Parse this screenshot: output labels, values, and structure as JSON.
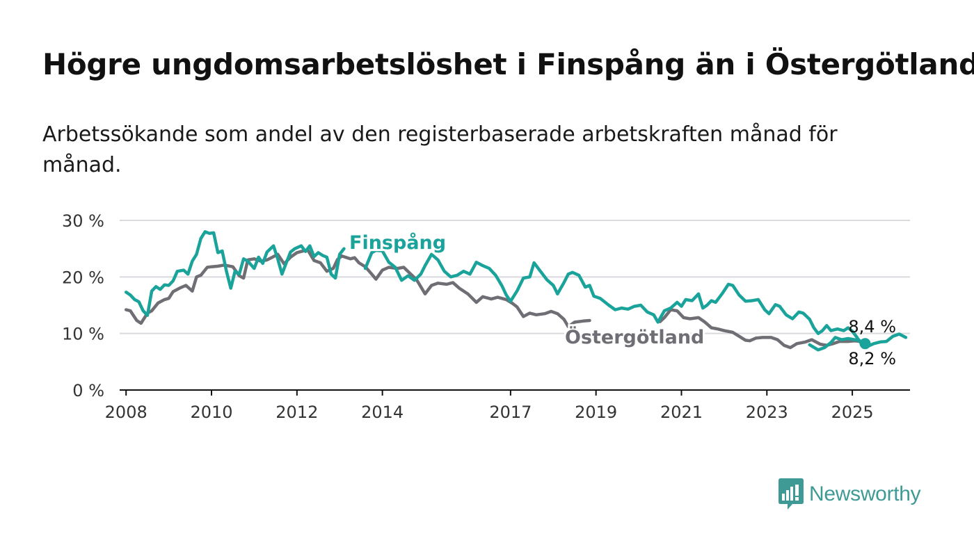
{
  "title": "Högre ungdomsarbetslöshet i Finspång än i Östergötland",
  "subtitle": "Arbetssökande som andel av den registerbaserade arbetskraften månad för månad.",
  "brand": {
    "name": "Newsworthy",
    "color": "#3f9a96"
  },
  "chart_data": {
    "type": "line",
    "grid": true,
    "ylim": [
      0,
      30
    ],
    "y_ticks": [
      0,
      10,
      20,
      30
    ],
    "y_tick_labels": [
      "0 %",
      "10 %",
      "20 %",
      "30 %"
    ],
    "x_range": [
      2007.85,
      2026.35
    ],
    "x_ticks": [
      2008,
      2010,
      2012,
      2014,
      2017,
      2019,
      2021,
      2023,
      2025
    ],
    "x_tick_labels": [
      "2008",
      "2010",
      "2012",
      "2014",
      "2017",
      "2019",
      "2021",
      "2023",
      "2025"
    ],
    "series": [
      {
        "name": "Östergötland",
        "color": "#6e6e74",
        "end_label": "8,4 %",
        "points": [
          [
            2008.0,
            14.2
          ],
          [
            2008.1,
            14.0
          ],
          [
            2008.25,
            12.3
          ],
          [
            2008.35,
            11.8
          ],
          [
            2008.5,
            13.6
          ],
          [
            2008.6,
            14.0
          ],
          [
            2008.75,
            15.4
          ],
          [
            2008.9,
            16.0
          ],
          [
            2009.0,
            16.2
          ],
          [
            2009.1,
            17.4
          ],
          [
            2009.25,
            18.0
          ],
          [
            2009.4,
            18.5
          ],
          [
            2009.55,
            17.5
          ],
          [
            2009.65,
            20.0
          ],
          [
            2009.75,
            20.3
          ],
          [
            2009.9,
            21.7
          ],
          [
            2010.0,
            21.8
          ],
          [
            2010.15,
            21.9
          ],
          [
            2010.3,
            22.1
          ],
          [
            2010.5,
            21.8
          ],
          [
            2010.65,
            20.2
          ],
          [
            2010.75,
            19.8
          ],
          [
            2010.85,
            23.0
          ],
          [
            2011.0,
            23.2
          ],
          [
            2011.15,
            22.8
          ],
          [
            2011.3,
            23.0
          ],
          [
            2011.4,
            23.4
          ],
          [
            2011.55,
            24.0
          ],
          [
            2011.7,
            22.3
          ],
          [
            2011.85,
            23.5
          ],
          [
            2012.0,
            24.3
          ],
          [
            2012.1,
            24.5
          ],
          [
            2012.25,
            24.8
          ],
          [
            2012.4,
            22.9
          ],
          [
            2012.55,
            22.5
          ],
          [
            2012.7,
            21.0
          ],
          [
            2012.85,
            21.5
          ],
          [
            2012.95,
            23.1
          ],
          [
            2013.05,
            23.7
          ],
          [
            2013.25,
            23.2
          ],
          [
            2013.35,
            23.4
          ],
          [
            2013.45,
            22.5
          ],
          [
            2013.6,
            21.8
          ],
          [
            2013.75,
            20.5
          ],
          [
            2013.85,
            19.6
          ],
          [
            2014.0,
            21.2
          ],
          [
            2014.15,
            21.7
          ],
          [
            2014.35,
            21.5
          ],
          [
            2014.5,
            21.7
          ],
          [
            2014.65,
            20.6
          ],
          [
            2014.8,
            19.5
          ],
          [
            2015.0,
            17.0
          ],
          [
            2015.15,
            18.5
          ],
          [
            2015.3,
            18.9
          ],
          [
            2015.5,
            18.7
          ],
          [
            2015.65,
            19.0
          ],
          [
            2015.8,
            18.0
          ],
          [
            2016.0,
            17.0
          ],
          [
            2016.2,
            15.5
          ],
          [
            2016.35,
            16.5
          ],
          [
            2016.55,
            16.1
          ],
          [
            2016.7,
            16.4
          ],
          [
            2016.9,
            16.0
          ],
          [
            2017.05,
            15.3
          ],
          [
            2017.15,
            14.7
          ],
          [
            2017.3,
            13.0
          ],
          [
            2017.45,
            13.6
          ],
          [
            2017.6,
            13.3
          ],
          [
            2017.8,
            13.5
          ],
          [
            2017.95,
            13.9
          ],
          [
            2018.1,
            13.5
          ],
          [
            2018.25,
            12.5
          ],
          [
            2018.35,
            11.2
          ],
          [
            2018.5,
            12.0
          ],
          [
            2018.7,
            12.2
          ],
          [
            2018.85,
            12.3
          ]
        ],
        "points_right": [
          [
            2020.5,
            12.1
          ],
          [
            2020.6,
            12.8
          ],
          [
            2020.75,
            14.2
          ],
          [
            2020.9,
            14.0
          ],
          [
            2021.05,
            12.8
          ],
          [
            2021.2,
            12.6
          ],
          [
            2021.4,
            12.8
          ],
          [
            2021.55,
            12.0
          ],
          [
            2021.7,
            11.0
          ],
          [
            2021.85,
            10.8
          ],
          [
            2022.0,
            10.5
          ],
          [
            2022.2,
            10.2
          ],
          [
            2022.35,
            9.5
          ],
          [
            2022.5,
            8.8
          ],
          [
            2022.6,
            8.7
          ],
          [
            2022.75,
            9.2
          ],
          [
            2022.9,
            9.3
          ],
          [
            2023.1,
            9.3
          ],
          [
            2023.25,
            8.9
          ],
          [
            2023.4,
            7.9
          ],
          [
            2023.55,
            7.5
          ],
          [
            2023.7,
            8.2
          ],
          [
            2023.9,
            8.5
          ],
          [
            2024.05,
            8.9
          ],
          [
            2024.25,
            8.1
          ],
          [
            2024.4,
            7.9
          ],
          [
            2024.55,
            8.2
          ],
          [
            2024.7,
            8.6
          ],
          [
            2024.9,
            8.6
          ],
          [
            2025.05,
            8.7
          ],
          [
            2025.2,
            8.6
          ],
          [
            2025.3,
            8.4
          ]
        ]
      },
      {
        "name": "Finspång",
        "color": "#1aa39a",
        "end_label": "8,2 %",
        "points": [
          [
            2008.0,
            17.3
          ],
          [
            2008.1,
            16.8
          ],
          [
            2008.2,
            16.0
          ],
          [
            2008.3,
            15.6
          ],
          [
            2008.4,
            14.0
          ],
          [
            2008.5,
            13.2
          ],
          [
            2008.6,
            17.5
          ],
          [
            2008.7,
            18.3
          ],
          [
            2008.8,
            17.8
          ],
          [
            2008.9,
            18.6
          ],
          [
            2009.0,
            18.5
          ],
          [
            2009.1,
            19.3
          ],
          [
            2009.2,
            21.0
          ],
          [
            2009.35,
            21.2
          ],
          [
            2009.45,
            20.5
          ],
          [
            2009.55,
            22.8
          ],
          [
            2009.65,
            24.0
          ],
          [
            2009.75,
            26.8
          ],
          [
            2009.85,
            28.0
          ],
          [
            2009.95,
            27.7
          ],
          [
            2010.05,
            27.8
          ],
          [
            2010.15,
            24.3
          ],
          [
            2010.25,
            24.6
          ],
          [
            2010.35,
            21.0
          ],
          [
            2010.45,
            18.0
          ],
          [
            2010.55,
            21.0
          ],
          [
            2010.65,
            20.5
          ],
          [
            2010.75,
            23.2
          ],
          [
            2010.85,
            22.8
          ],
          [
            2011.0,
            21.5
          ],
          [
            2011.1,
            23.5
          ],
          [
            2011.2,
            22.4
          ],
          [
            2011.3,
            24.4
          ],
          [
            2011.45,
            25.5
          ],
          [
            2011.55,
            23.2
          ],
          [
            2011.65,
            20.5
          ],
          [
            2011.75,
            22.5
          ],
          [
            2011.85,
            24.4
          ],
          [
            2011.95,
            25.0
          ],
          [
            2012.1,
            25.5
          ],
          [
            2012.2,
            24.5
          ],
          [
            2012.3,
            25.5
          ],
          [
            2012.4,
            23.6
          ],
          [
            2012.5,
            24.3
          ],
          [
            2012.6,
            23.8
          ],
          [
            2012.7,
            23.5
          ],
          [
            2012.8,
            20.5
          ],
          [
            2012.9,
            19.8
          ],
          [
            2013.0,
            24.0
          ],
          [
            2013.1,
            25.0
          ]
        ],
        "points_mid": [
          [
            2013.6,
            21.5
          ],
          [
            2013.75,
            24.3
          ],
          [
            2013.85,
            24.7
          ],
          [
            2014.0,
            24.6
          ],
          [
            2014.15,
            22.6
          ],
          [
            2014.3,
            21.7
          ],
          [
            2014.45,
            19.4
          ],
          [
            2014.6,
            20.2
          ],
          [
            2014.75,
            19.4
          ],
          [
            2014.9,
            20.5
          ],
          [
            2015.0,
            22.0
          ],
          [
            2015.15,
            24.0
          ],
          [
            2015.3,
            23.0
          ],
          [
            2015.45,
            21.0
          ],
          [
            2015.6,
            20.0
          ],
          [
            2015.75,
            20.3
          ],
          [
            2015.9,
            21.0
          ],
          [
            2016.05,
            20.5
          ],
          [
            2016.2,
            22.6
          ],
          [
            2016.35,
            22.0
          ],
          [
            2016.5,
            21.5
          ],
          [
            2016.65,
            20.3
          ],
          [
            2016.8,
            18.4
          ],
          [
            2016.9,
            16.8
          ],
          [
            2017.0,
            15.7
          ],
          [
            2017.15,
            17.5
          ],
          [
            2017.3,
            19.8
          ],
          [
            2017.45,
            20.0
          ],
          [
            2017.55,
            22.5
          ],
          [
            2017.7,
            21.0
          ],
          [
            2017.85,
            19.5
          ],
          [
            2018.0,
            18.5
          ],
          [
            2018.1,
            17.0
          ],
          [
            2018.25,
            19.0
          ],
          [
            2018.35,
            20.5
          ],
          [
            2018.45,
            20.8
          ],
          [
            2018.6,
            20.3
          ],
          [
            2018.75,
            18.2
          ],
          [
            2018.85,
            18.5
          ],
          [
            2018.95,
            16.6
          ],
          [
            2019.1,
            16.2
          ],
          [
            2019.3,
            15.0
          ],
          [
            2019.45,
            14.2
          ],
          [
            2019.6,
            14.5
          ],
          [
            2019.75,
            14.3
          ],
          [
            2019.9,
            14.8
          ],
          [
            2020.05,
            15.0
          ],
          [
            2020.2,
            13.8
          ],
          [
            2020.35,
            13.3
          ],
          [
            2020.45,
            12.0
          ],
          [
            2020.6,
            14.0
          ],
          [
            2020.75,
            14.5
          ],
          [
            2020.9,
            15.5
          ],
          [
            2021.0,
            14.8
          ],
          [
            2021.1,
            16.0
          ],
          [
            2021.25,
            15.8
          ],
          [
            2021.4,
            17.0
          ],
          [
            2021.5,
            14.5
          ],
          [
            2021.6,
            15.0
          ],
          [
            2021.7,
            15.8
          ],
          [
            2021.8,
            15.5
          ],
          [
            2021.95,
            17.0
          ],
          [
            2022.1,
            18.7
          ],
          [
            2022.2,
            18.5
          ],
          [
            2022.35,
            16.8
          ],
          [
            2022.5,
            15.7
          ],
          [
            2022.65,
            15.8
          ],
          [
            2022.8,
            16.0
          ],
          [
            2022.95,
            14.2
          ],
          [
            2023.05,
            13.5
          ],
          [
            2023.2,
            15.1
          ],
          [
            2023.3,
            14.8
          ],
          [
            2023.45,
            13.3
          ],
          [
            2023.6,
            12.6
          ],
          [
            2023.75,
            13.8
          ],
          [
            2023.85,
            13.6
          ],
          [
            2024.0,
            12.5
          ],
          [
            2024.1,
            11.0
          ],
          [
            2024.2,
            10.0
          ],
          [
            2024.3,
            10.5
          ],
          [
            2024.4,
            11.4
          ],
          [
            2024.5,
            10.5
          ],
          [
            2024.65,
            10.8
          ],
          [
            2024.8,
            10.5
          ],
          [
            2024.9,
            11.0
          ],
          [
            2025.0,
            10.4
          ],
          [
            2025.1,
            9.4
          ],
          [
            2025.2,
            8.3
          ],
          [
            2025.35,
            7.7
          ],
          [
            2025.5,
            8.2
          ],
          [
            2025.65,
            8.5
          ],
          [
            2025.8,
            8.6
          ],
          [
            2025.95,
            9.5
          ],
          [
            2026.1,
            9.9
          ],
          [
            2026.25,
            9.3
          ]
        ],
        "points_tail": [
          [
            2024.0,
            8.0
          ],
          [
            2024.2,
            7.1
          ],
          [
            2024.35,
            7.5
          ],
          [
            2024.5,
            8.4
          ],
          [
            2024.6,
            9.3
          ],
          [
            2024.75,
            8.9
          ],
          [
            2024.9,
            9.1
          ],
          [
            2025.05,
            8.9
          ],
          [
            2025.15,
            8.8
          ],
          [
            2025.3,
            8.2
          ]
        ]
      }
    ],
    "labels": [
      {
        "text": "Finspång",
        "color": "#1aa39a"
      },
      {
        "text": "Östergötland",
        "color": "#6e6e74"
      }
    ]
  }
}
